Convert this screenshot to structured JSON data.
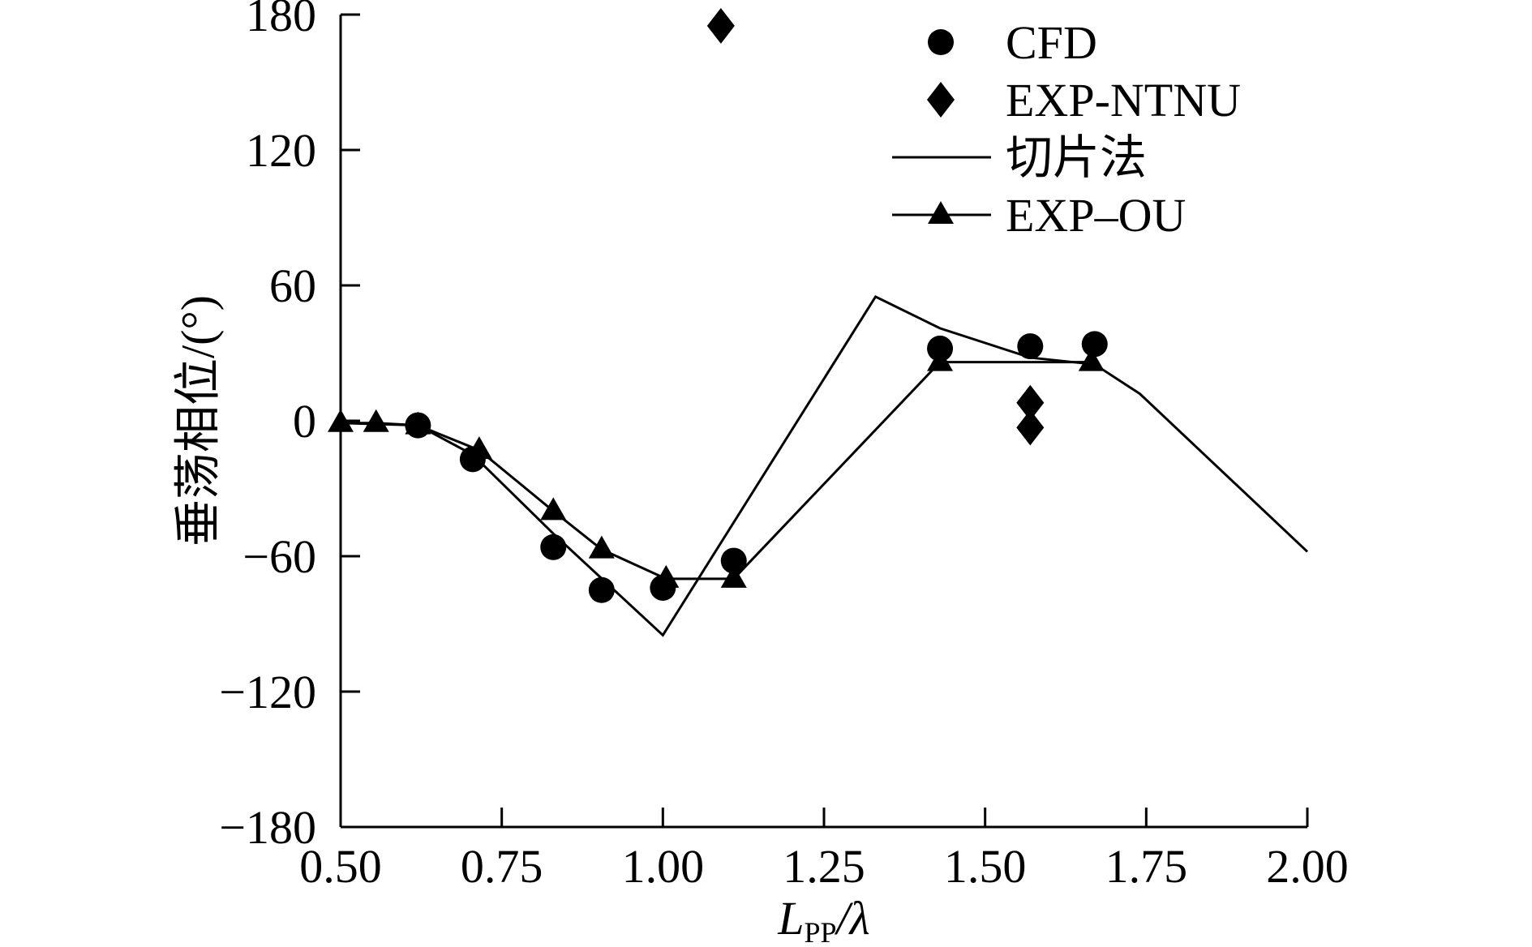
{
  "chart_data": {
    "type": "line",
    "title": "",
    "xlabel_main": "L",
    "xlabel_sub": "PP",
    "xlabel_tail": "/λ",
    "ylabel": "垂荡相位/(°)",
    "xlim": [
      0.5,
      2.0
    ],
    "ylim": [
      -180,
      180
    ],
    "xticks": [
      "0.50",
      "0.75",
      "1.00",
      "1.25",
      "1.50",
      "1.75",
      "2.00"
    ],
    "xtick_values": [
      0.5,
      0.75,
      1.0,
      1.25,
      1.5,
      1.75,
      2.0
    ],
    "yticks": [
      "180",
      "120",
      "60",
      "0",
      "-60",
      "-120",
      "-180"
    ],
    "ytick_values": [
      180,
      120,
      60,
      0,
      -60,
      -120,
      -180
    ],
    "grid": false,
    "legend_position": "top-right",
    "series": [
      {
        "name": "CFD",
        "marker": "circle",
        "line": false,
        "x": [
          0.62,
          0.705,
          0.83,
          0.905,
          1.0,
          1.11,
          1.43,
          1.57,
          1.67
        ],
        "y": [
          -2,
          -17,
          -56,
          -75,
          -74,
          -62,
          32,
          33,
          34
        ]
      },
      {
        "name": "EXP-NTNU",
        "marker": "diamond",
        "line": false,
        "x": [
          1.09,
          1.57,
          1.57
        ],
        "y": [
          175,
          8,
          -3
        ]
      },
      {
        "name": "切片法",
        "marker": "none",
        "line": true,
        "x": [
          0.5,
          0.62,
          0.705,
          0.83,
          1.0,
          1.33,
          1.43,
          1.57,
          1.67,
          1.74,
          2.0
        ],
        "y": [
          -1,
          -2,
          -15,
          -50,
          -95,
          55,
          41,
          28,
          25,
          12,
          -58
        ]
      },
      {
        "name": "EXP–OU",
        "marker": "triangle",
        "line": true,
        "x": [
          0.5,
          0.555,
          0.62,
          0.715,
          0.83,
          0.905,
          1.005,
          1.11,
          1.43,
          1.665
        ],
        "y": [
          -1,
          -1,
          -2,
          -13,
          -40,
          -57,
          -70,
          -70,
          26,
          26
        ]
      }
    ]
  }
}
